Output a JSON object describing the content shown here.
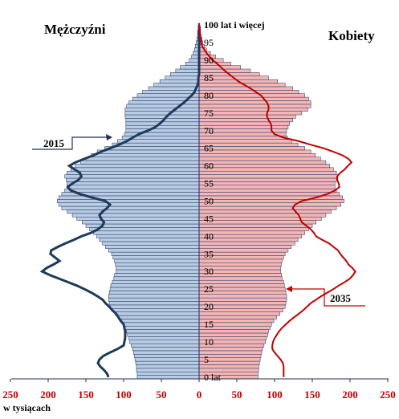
{
  "chart_data": {
    "type": "population-pyramid",
    "left_title": "Mężczyźni",
    "right_title": "Kobiety",
    "x_unit_label": "w tysiącach",
    "x_ticks_left": [
      250,
      200,
      150,
      100,
      50,
      0
    ],
    "x_ticks_right": [
      50,
      100,
      150,
      200,
      250
    ],
    "xlim": [
      -250,
      250
    ],
    "age_range": [
      0,
      100
    ],
    "age_ticks": [
      "0 lat",
      "5",
      "10",
      "15",
      "20",
      "25",
      "30",
      "35",
      "40",
      "45",
      "50",
      "55",
      "60",
      "65",
      "70",
      "75",
      "80",
      "85",
      "90",
      "95",
      "100 lat i więcej"
    ],
    "bar_year_colors": {
      "men": "#b8cce4",
      "women": "#f4b6b6",
      "bar_edge": "#1f2f5a"
    },
    "line_colors": {
      "men_2015": "#1f3a5a",
      "women_2035": "#c00000"
    },
    "annotations": {
      "men_line_label": "2015",
      "women_line_label": "2035"
    },
    "ages": [
      0,
      1,
      2,
      3,
      4,
      5,
      6,
      7,
      8,
      9,
      10,
      11,
      12,
      13,
      14,
      15,
      16,
      17,
      18,
      19,
      20,
      21,
      22,
      23,
      24,
      25,
      26,
      27,
      28,
      29,
      30,
      31,
      32,
      33,
      34,
      35,
      36,
      37,
      38,
      39,
      40,
      41,
      42,
      43,
      44,
      45,
      46,
      47,
      48,
      49,
      50,
      51,
      52,
      53,
      54,
      55,
      56,
      57,
      58,
      59,
      60,
      61,
      62,
      63,
      64,
      65,
      66,
      67,
      68,
      69,
      70,
      71,
      72,
      73,
      74,
      75,
      76,
      77,
      78,
      79,
      80,
      81,
      82,
      83,
      84,
      85,
      86,
      87,
      88,
      89,
      90,
      91,
      92,
      93,
      94,
      95,
      96,
      97,
      98,
      99,
      100
    ],
    "series": [
      {
        "name": "Mężczyźni",
        "kind": "bars",
        "values": [
          82,
          82,
          83,
          83,
          84,
          85,
          86,
          87,
          88,
          90,
          92,
          93,
          95,
          96,
          98,
          100,
          103,
          107,
          111,
          115,
          118,
          119,
          120,
          120,
          119,
          118,
          117,
          115,
          113,
          112,
          110,
          110,
          111,
          112,
          114,
          116,
          120,
          124,
          128,
          132,
          136,
          140,
          145,
          150,
          155,
          162,
          168,
          175,
          182,
          186,
          188,
          186,
          182,
          178,
          175,
          175,
          176,
          178,
          175,
          170,
          164,
          157,
          150,
          143,
          135,
          125,
          115,
          108,
          102,
          99,
          97,
          97,
          97,
          97,
          98,
          98,
          98,
          96,
          93,
          88,
          82,
          75,
          67,
          60,
          52,
          45,
          38,
          31,
          25,
          18,
          13,
          10,
          8,
          6,
          5,
          4,
          3,
          2,
          2,
          1,
          1
        ]
      },
      {
        "name": "Kobiety",
        "kind": "bars",
        "values": [
          78,
          78,
          79,
          79,
          80,
          81,
          82,
          83,
          84,
          86,
          88,
          89,
          91,
          92,
          94,
          96,
          99,
          103,
          107,
          111,
          114,
          115,
          116,
          116,
          115,
          114,
          113,
          112,
          110,
          109,
          108,
          108,
          109,
          110,
          112,
          114,
          118,
          122,
          127,
          131,
          136,
          140,
          145,
          150,
          155,
          162,
          168,
          175,
          182,
          188,
          192,
          190,
          186,
          182,
          180,
          180,
          182,
          184,
          182,
          178,
          173,
          168,
          161,
          154,
          148,
          140,
          131,
          123,
          117,
          115,
          116,
          118,
          120,
          124,
          128,
          136,
          144,
          148,
          148,
          145,
          140,
          132,
          124,
          114,
          104,
          92,
          80,
          68,
          55,
          42,
          32,
          22,
          15,
          10,
          7,
          5,
          4,
          3,
          2,
          2,
          1
        ]
      },
      {
        "name": "2015",
        "kind": "line",
        "side": "men",
        "values": [
          120,
          122,
          126,
          131,
          134,
          132,
          127,
          118,
          108,
          100,
          99,
          98,
          98,
          98,
          99,
          100,
          104,
          107,
          110,
          115,
          119,
          124,
          128,
          135,
          143,
          152,
          162,
          174,
          186,
          198,
          208,
          202,
          193,
          185,
          191,
          197,
          196,
          187,
          177,
          166,
          156,
          143,
          134,
          128,
          126,
          130,
          132,
          128,
          122,
          118,
          124,
          142,
          158,
          170,
          174,
          168,
          160,
          156,
          158,
          165,
          172,
          164,
          152,
          140,
          130,
          118,
          106,
          96,
          88,
          80,
          68,
          58,
          52,
          47,
          43,
          38,
          32,
          26,
          20,
          15,
          10,
          6,
          4,
          2,
          1,
          1,
          0,
          0,
          0,
          0,
          0,
          0,
          0,
          0,
          0,
          0,
          0,
          0,
          0,
          0,
          0
        ]
      },
      {
        "name": "2035",
        "kind": "line",
        "side": "women",
        "values": [
          112,
          112,
          112,
          112,
          111,
          108,
          104,
          100,
          97,
          97,
          98,
          100,
          103,
          106,
          110,
          115,
          120,
          126,
          132,
          138,
          143,
          148,
          155,
          162,
          170,
          178,
          185,
          193,
          200,
          204,
          207,
          203,
          198,
          195,
          191,
          187,
          184,
          178,
          172,
          163,
          155,
          152,
          148,
          142,
          136,
          134,
          132,
          128,
          124,
          127,
          136,
          155,
          170,
          180,
          186,
          185,
          183,
          183,
          187,
          193,
          197,
          202,
          198,
          190,
          178,
          165,
          148,
          132,
          112,
          100,
          96,
          96,
          95,
          92,
          90,
          90,
          92,
          92,
          90,
          86,
          82,
          75,
          68,
          60,
          52,
          46,
          40,
          34,
          29,
          24,
          18,
          14,
          10,
          7,
          4,
          3,
          2,
          1,
          1,
          0,
          0
        ]
      }
    ]
  }
}
